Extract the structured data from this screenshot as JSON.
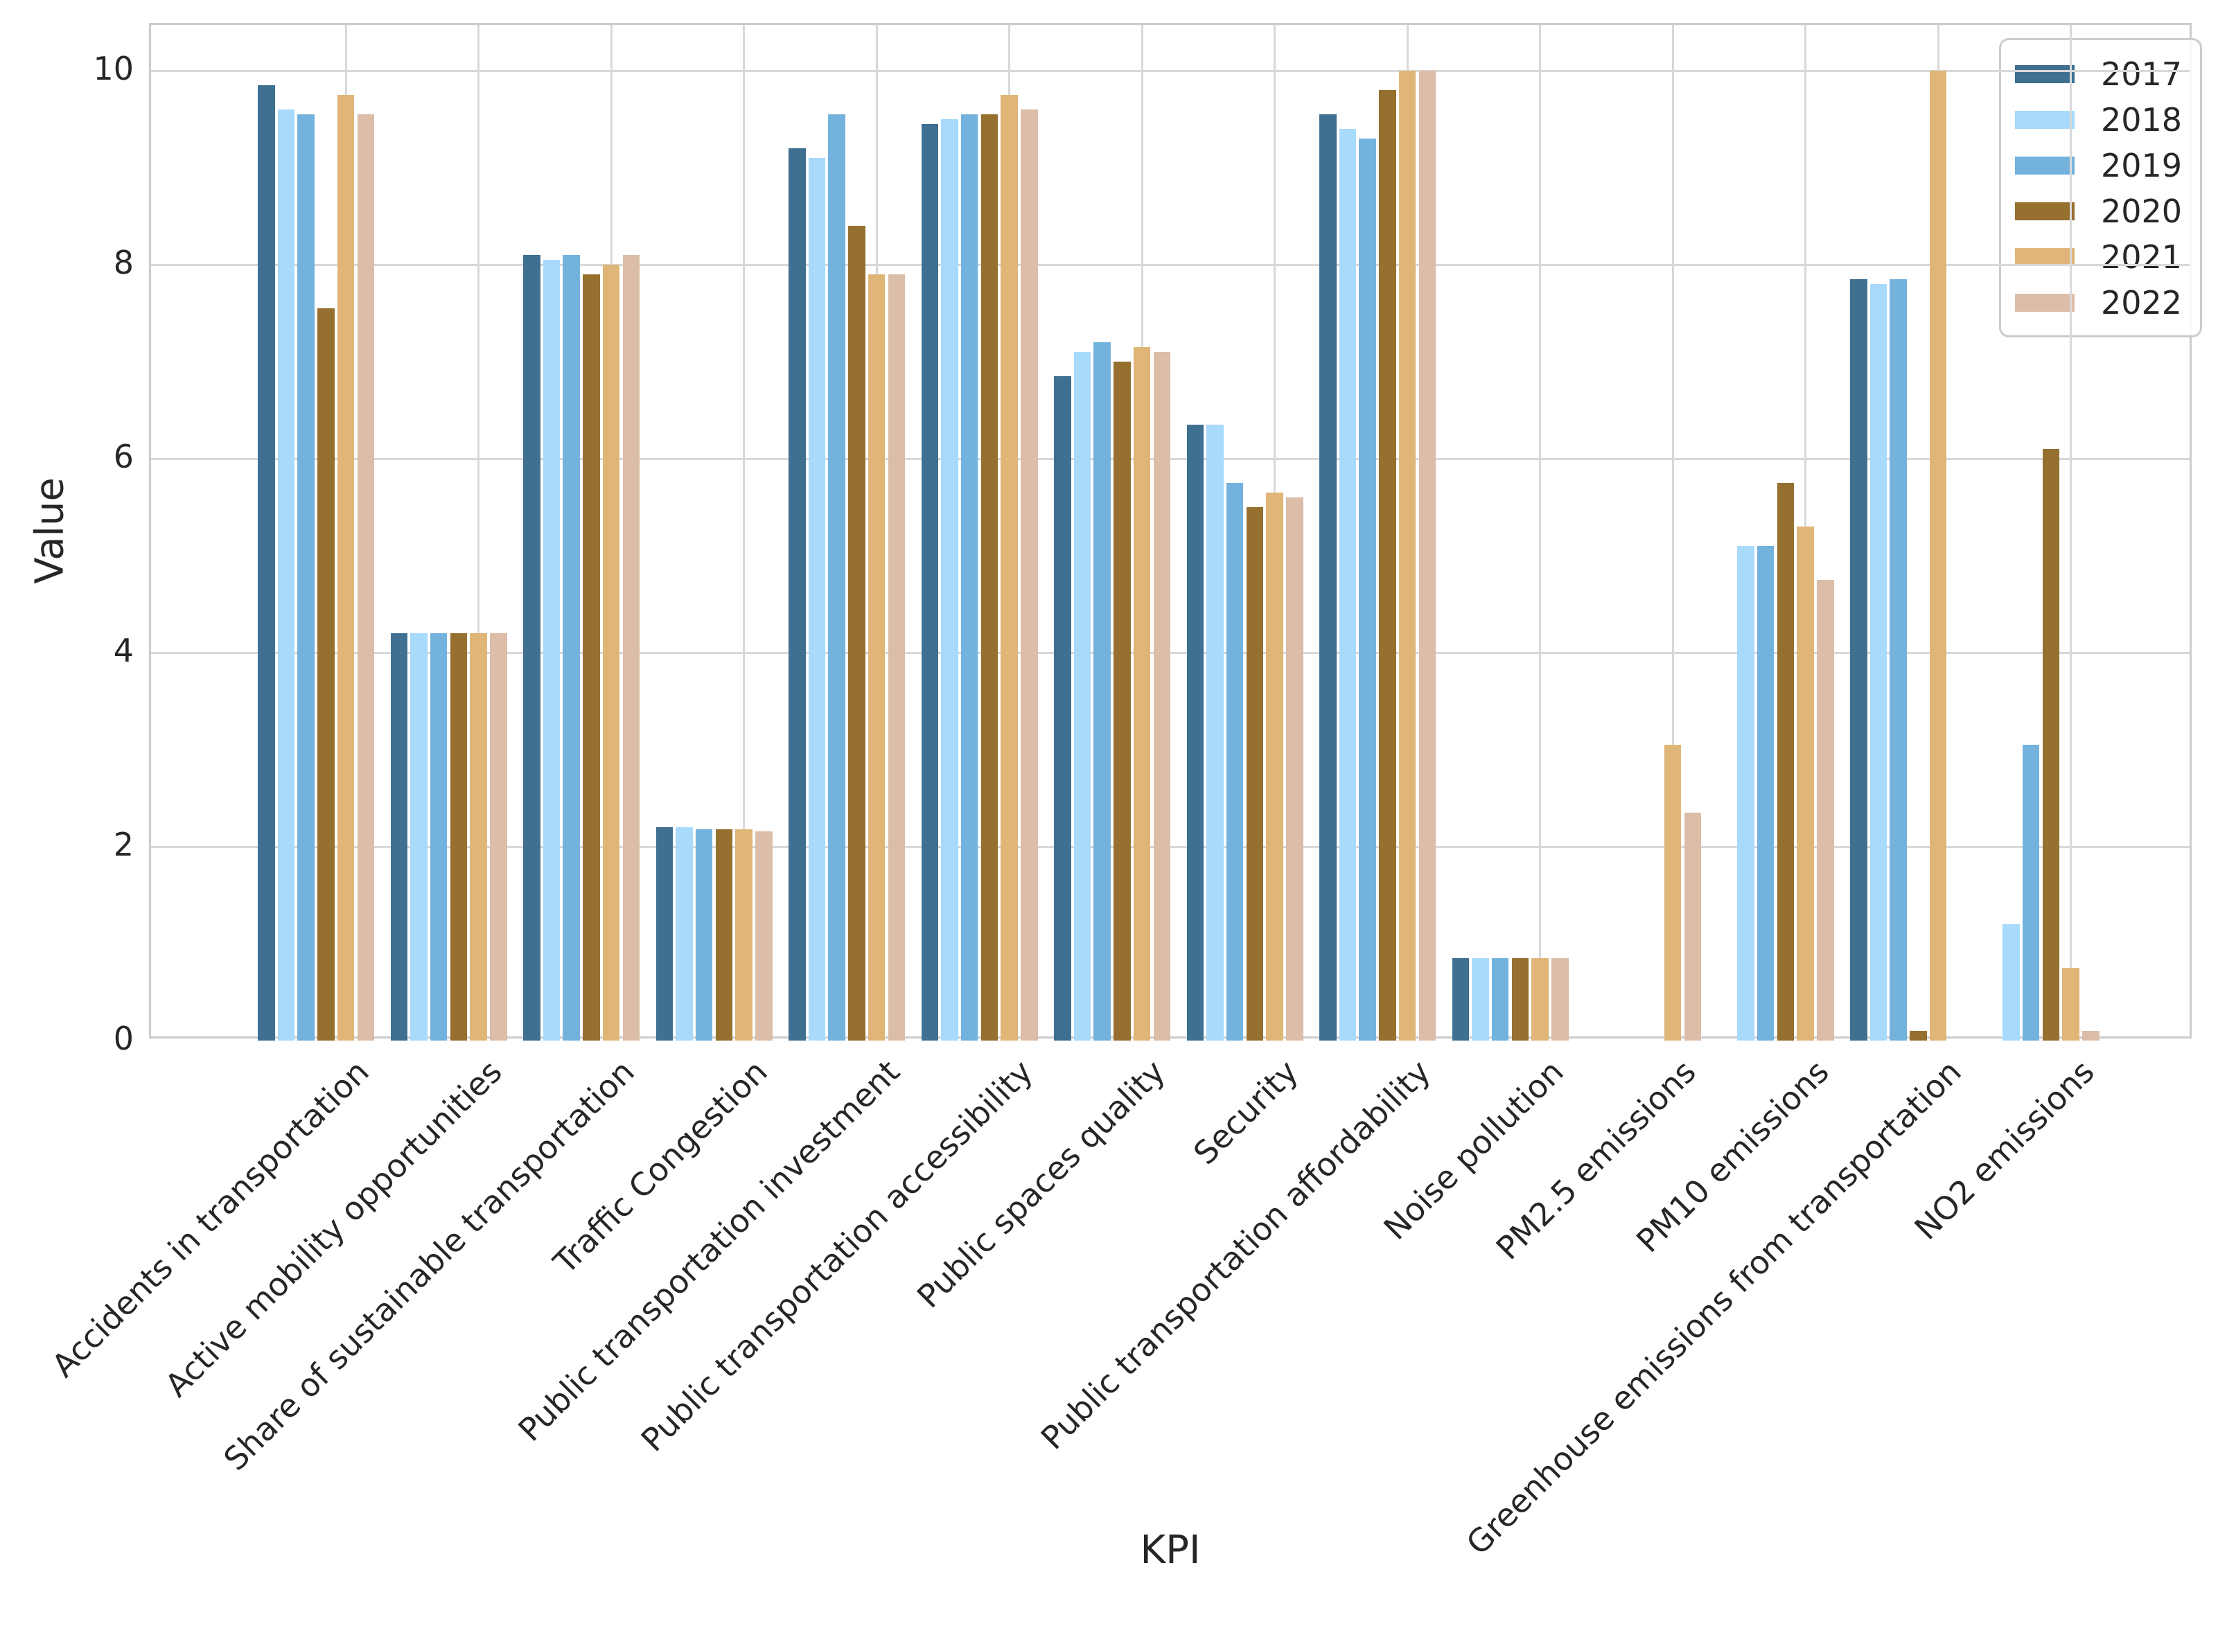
{
  "chart_data": {
    "type": "bar",
    "title": "",
    "xlabel": "KPI",
    "ylabel": "Value",
    "grid": true,
    "legend_position": "upper right",
    "background_color": "#ffffff",
    "grid_color": "#d9d9d9",
    "spine_color": "#cccccc",
    "text_color": "#262626",
    "ylim": [
      0,
      10.47
    ],
    "yticks": [
      0,
      2,
      4,
      6,
      8,
      10
    ],
    "categories": [
      "Accidents in transportation",
      "Active mobility opportunities",
      "Share of sustainable transportation",
      "Traffic Congestion",
      "Public transportation investment",
      "Public transportation accessibility",
      "Public spaces quality",
      "Security",
      "Public transportation affordability",
      "Noise pollution",
      "PM2.5 emissions",
      "PM10 emissions",
      "Greenhouse emissions from transportation",
      "NO2 emissions"
    ],
    "series": [
      {
        "name": "2017",
        "color": "#3f7092",
        "values": [
          9.85,
          4.2,
          8.1,
          2.2,
          9.2,
          9.45,
          6.85,
          6.35,
          9.55,
          0.85,
          0,
          0,
          7.85,
          0
        ]
      },
      {
        "name": "2018",
        "color": "#a8dafb",
        "values": [
          9.6,
          4.2,
          8.05,
          2.2,
          9.1,
          9.5,
          7.1,
          6.35,
          9.4,
          0.85,
          0,
          5.1,
          7.8,
          1.2
        ]
      },
      {
        "name": "2019",
        "color": "#74b2de",
        "values": [
          9.55,
          4.2,
          8.1,
          2.18,
          9.55,
          9.55,
          7.2,
          5.75,
          9.3,
          0.85,
          0,
          5.1,
          7.85,
          3.05
        ]
      },
      {
        "name": "2020",
        "color": "#95702f",
        "values": [
          7.55,
          4.2,
          7.9,
          2.18,
          8.4,
          9.55,
          7.0,
          5.5,
          9.8,
          0.85,
          0,
          5.75,
          0.1,
          6.1
        ]
      },
      {
        "name": "2021",
        "color": "#dfb678",
        "values": [
          9.75,
          4.2,
          8.0,
          2.18,
          7.9,
          9.75,
          7.15,
          5.65,
          10.0,
          0.85,
          3.05,
          5.3,
          10.0,
          0.75
        ]
      },
      {
        "name": "2022",
        "color": "#dcbda8",
        "values": [
          9.55,
          4.2,
          8.1,
          2.16,
          7.9,
          9.6,
          7.1,
          5.6,
          10.0,
          0.85,
          2.35,
          4.75,
          0,
          0.1
        ]
      }
    ]
  }
}
